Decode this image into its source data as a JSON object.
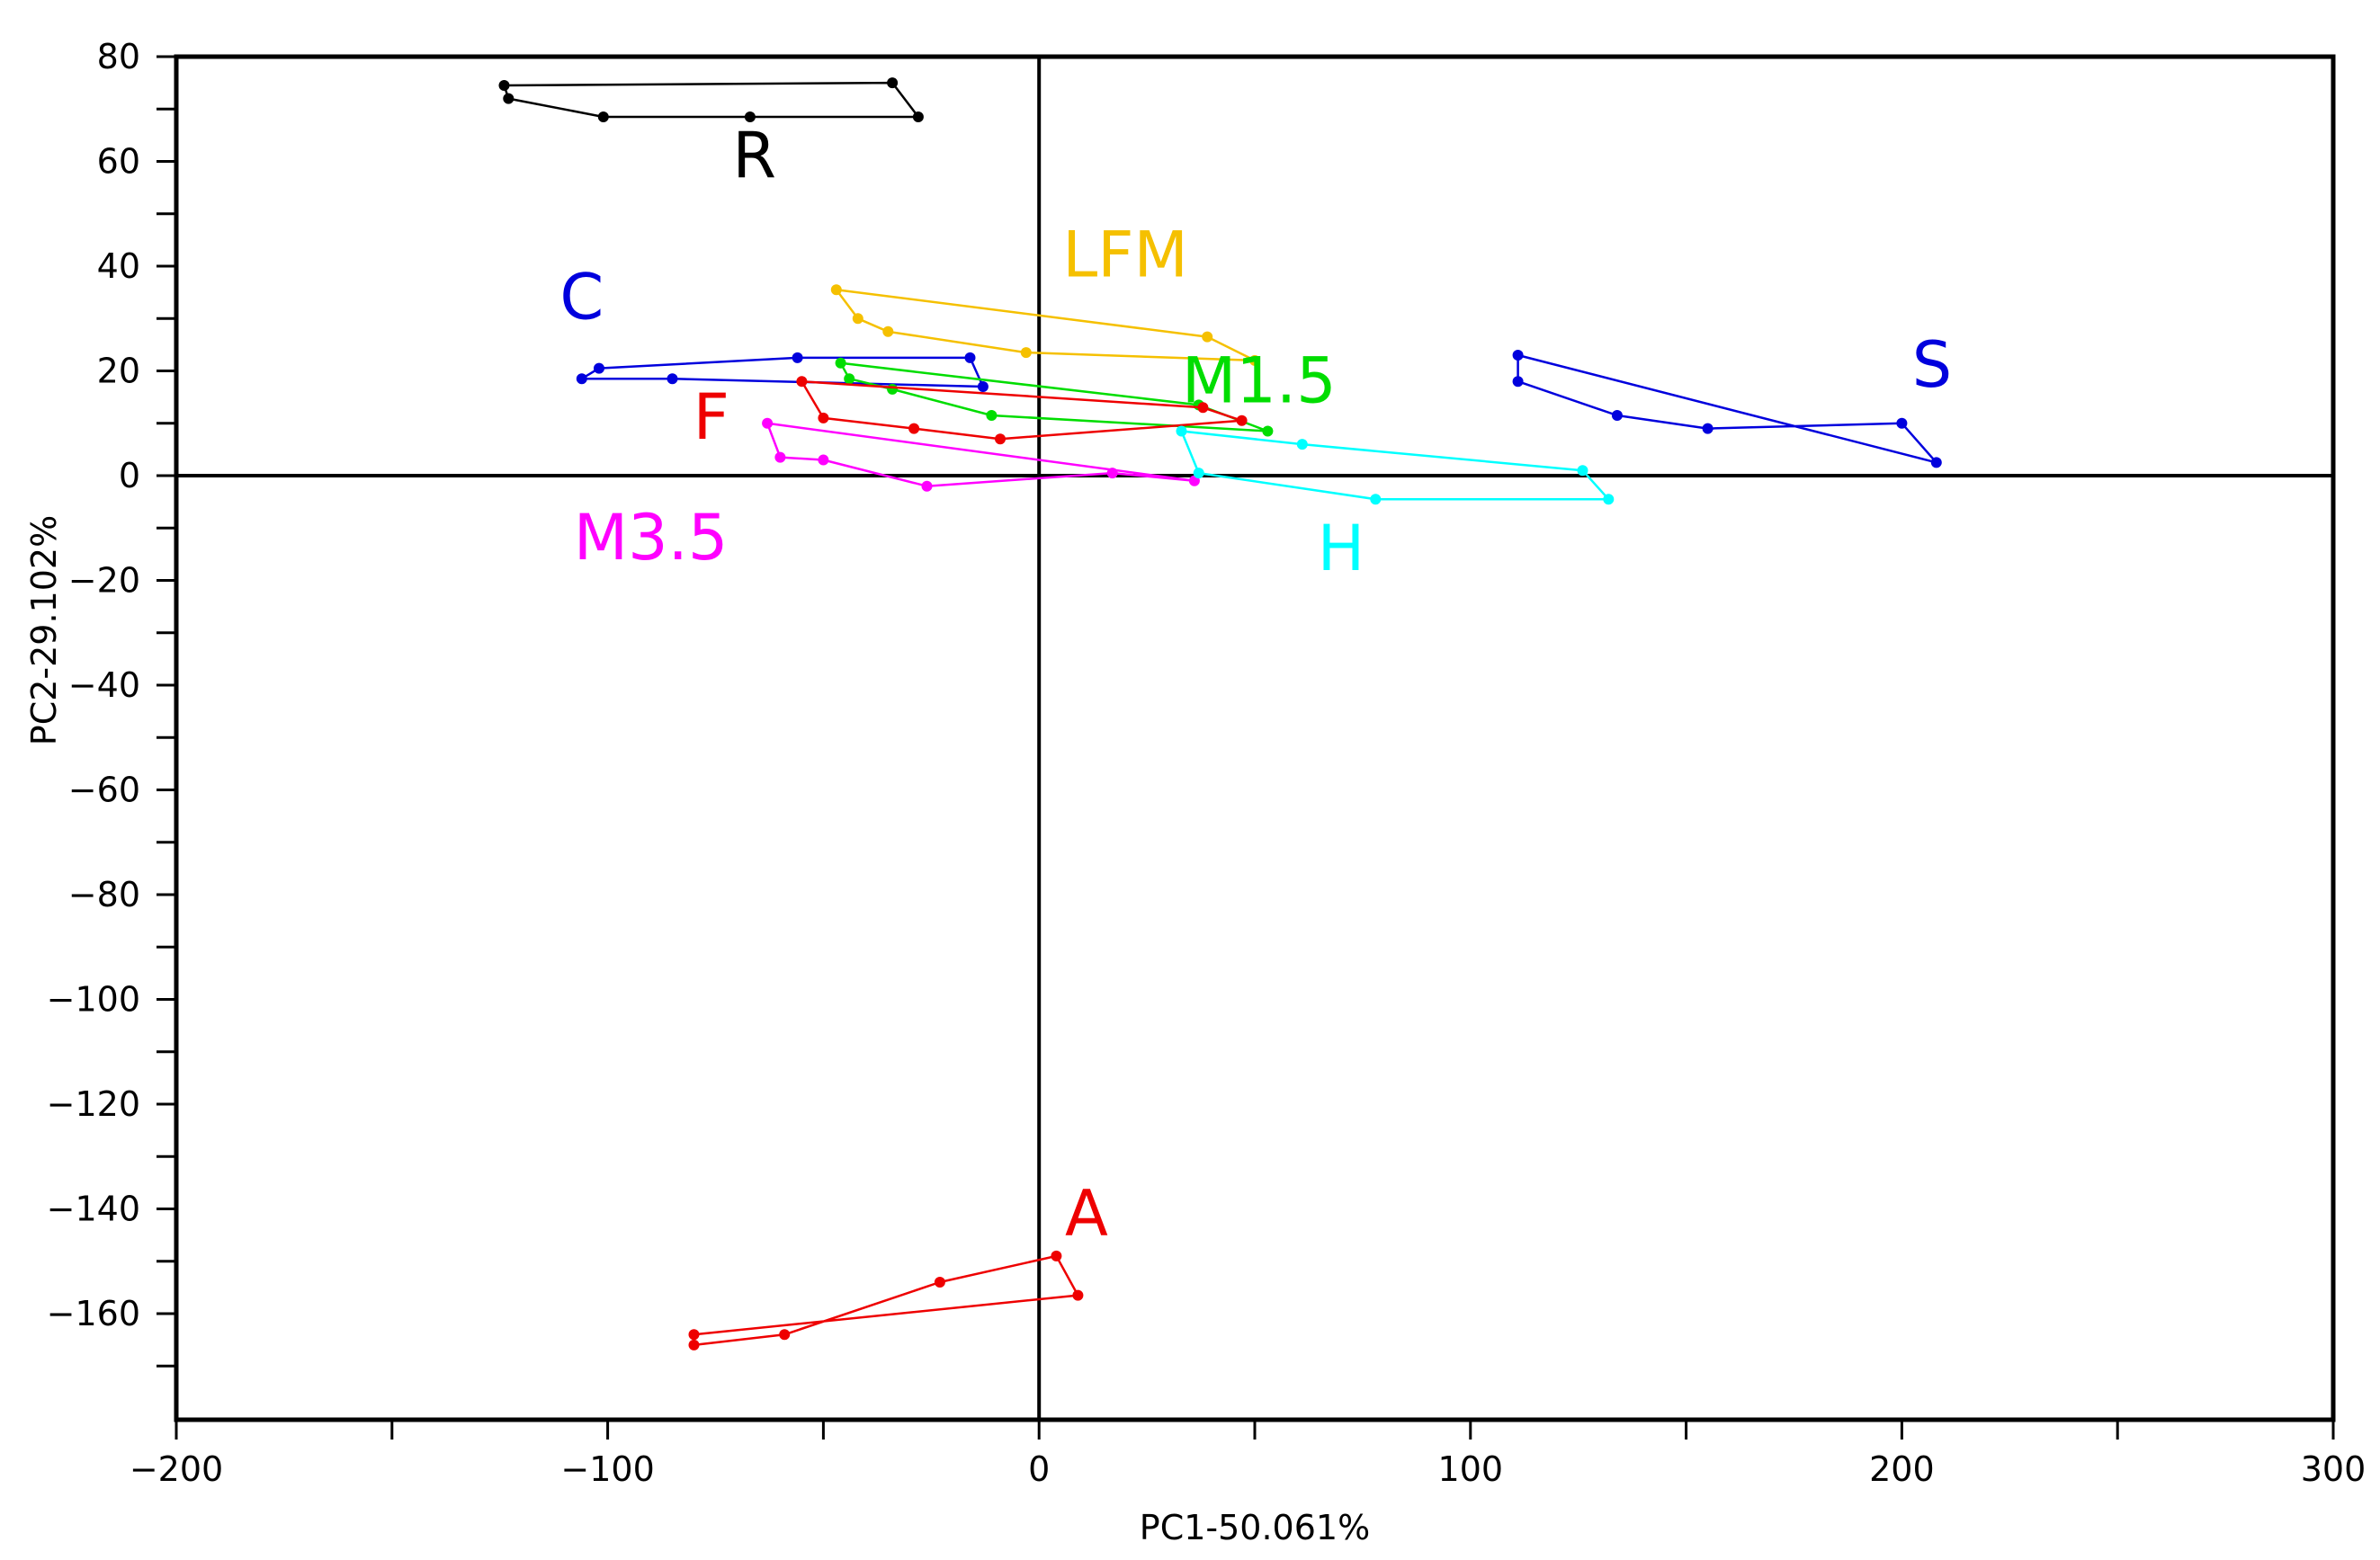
{
  "chart_data": {
    "type": "scatter",
    "title": "",
    "xlabel": "PC1-50.061%",
    "ylabel": "PC2-29.102%",
    "xlim": [
      -200,
      300
    ],
    "ylim": [
      -180,
      80
    ],
    "xticks": [
      -200,
      -100,
      0,
      100,
      200,
      300
    ],
    "xtick_labels": [
      "−200",
      "−100",
      "0",
      "100",
      "200",
      "300"
    ],
    "yticks": [
      80,
      60,
      40,
      20,
      0,
      -20,
      -40,
      -60,
      -80,
      -100,
      -120,
      -140,
      -160
    ],
    "ytick_labels": [
      "80",
      "60",
      "40",
      "20",
      "0",
      "−20",
      "−40",
      "−60",
      "−80",
      "−100",
      "−120",
      "−140",
      "−160"
    ],
    "grid": false,
    "series": [
      {
        "name": "R",
        "color": "#000000",
        "label_at": [
          -66,
          57
        ],
        "points": [
          [
            -124,
            74.5
          ],
          [
            -123,
            72
          ],
          [
            -101,
            68.5
          ],
          [
            -67,
            68.5
          ],
          [
            -28,
            68.5
          ],
          [
            -34,
            75
          ]
        ]
      },
      {
        "name": "C",
        "color": "#0000dd",
        "label_at": [
          -106,
          30
        ],
        "points": [
          [
            -106,
            18.5
          ],
          [
            -102,
            20.5
          ],
          [
            -56,
            22.5
          ],
          [
            -16,
            22.5
          ],
          [
            -13,
            17
          ],
          [
            -85,
            18.5
          ]
        ]
      },
      {
        "name": "LFM",
        "color": "#f5c000",
        "label_at": [
          20,
          38
        ],
        "points": [
          [
            -47,
            35.5
          ],
          [
            -42,
            30
          ],
          [
            -35,
            27.5
          ],
          [
            -3,
            23.5
          ],
          [
            50,
            22
          ],
          [
            39,
            26.5
          ]
        ]
      },
      {
        "name": "M1.5",
        "color": "#00dd00",
        "label_at": [
          51,
          14
        ],
        "points": [
          [
            -46,
            21.5
          ],
          [
            -44,
            18.5
          ],
          [
            -34,
            16.5
          ],
          [
            -11,
            11.5
          ],
          [
            53,
            8.5
          ],
          [
            37,
            13.5
          ]
        ]
      },
      {
        "name": "F",
        "color": "#ee0000",
        "label_at": [
          -76,
          7
        ],
        "points": [
          [
            -55,
            18
          ],
          [
            -50,
            11
          ],
          [
            -29,
            9
          ],
          [
            -9,
            7
          ],
          [
            47,
            10.5
          ],
          [
            38,
            13
          ]
        ]
      },
      {
        "name": "M3.5",
        "color": "#ff00ff",
        "label_at": [
          -90,
          -16
        ],
        "points": [
          [
            -63,
            10
          ],
          [
            -60,
            3.5
          ],
          [
            -50,
            3
          ],
          [
            -26,
            -2
          ],
          [
            17,
            0.5
          ],
          [
            36,
            -1
          ]
        ]
      },
      {
        "name": "H",
        "color": "#00ffff",
        "label_at": [
          70,
          -18
        ],
        "points": [
          [
            33,
            8.5
          ],
          [
            37,
            0.5
          ],
          [
            78,
            -4.5
          ],
          [
            132,
            -4.5
          ],
          [
            126,
            1
          ],
          [
            61,
            6
          ]
        ]
      },
      {
        "name": "S",
        "color": "#0000dd",
        "label_at": [
          207,
          17
        ],
        "points": [
          [
            111,
            23
          ],
          [
            111,
            18
          ],
          [
            134,
            11.5
          ],
          [
            155,
            9
          ],
          [
            200,
            10
          ],
          [
            208,
            2.5
          ]
        ]
      },
      {
        "name": "A",
        "color": "#ee0000",
        "label_at": [
          11,
          -145
        ],
        "points": [
          [
            -80,
            -164
          ],
          [
            -80,
            -166
          ],
          [
            -59,
            -164
          ],
          [
            -23,
            -154
          ],
          [
            4,
            -149
          ],
          [
            9,
            -156.5
          ]
        ]
      }
    ]
  }
}
